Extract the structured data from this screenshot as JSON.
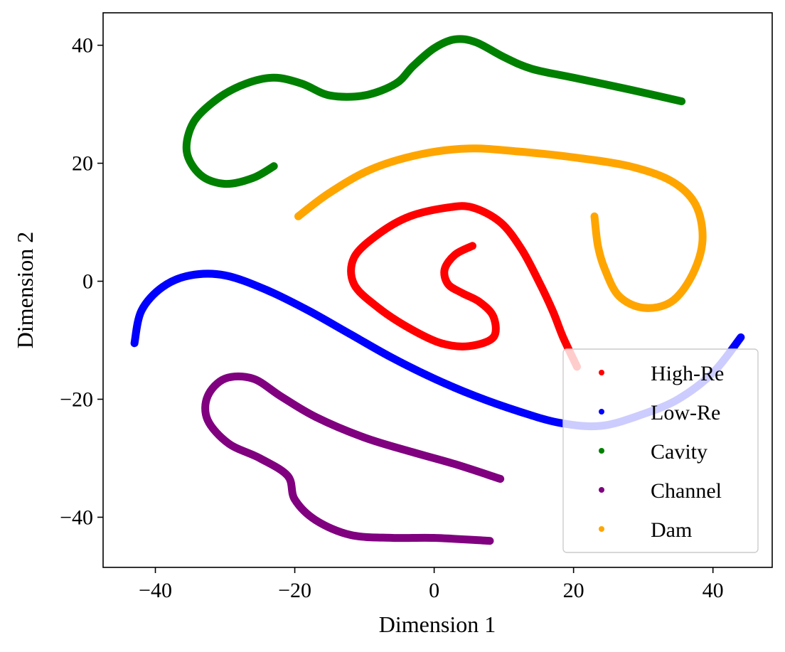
{
  "chart_data": {
    "type": "scatter",
    "title": "",
    "xlabel": "Dimension 1",
    "ylabel": "Dimension 2",
    "xlim": [
      -47.5,
      48.5
    ],
    "ylim": [
      -48.5,
      45.5
    ],
    "xticks": [
      -40,
      -20,
      0,
      20,
      40
    ],
    "yticks": [
      40,
      20,
      0,
      -20,
      -40
    ],
    "xtick_labels": [
      "−40",
      "−20",
      "0",
      "20",
      "40"
    ],
    "ytick_labels": [
      "40",
      "20",
      "0",
      "−20",
      "−40"
    ],
    "grid": false,
    "legend_position": "lower-right",
    "series": [
      {
        "name": "High-Re",
        "color": "#ff0000",
        "points": [
          [
            5.5,
            6
          ],
          [
            3,
            4.5
          ],
          [
            1.5,
            2
          ],
          [
            2,
            -0.5
          ],
          [
            4,
            -2
          ],
          [
            6.5,
            -3.5
          ],
          [
            8.5,
            -6
          ],
          [
            8.5,
            -9.5
          ],
          [
            5,
            -11
          ],
          [
            1,
            -10.5
          ],
          [
            -3.5,
            -8
          ],
          [
            -8,
            -4.5
          ],
          [
            -11.5,
            -0.5
          ],
          [
            -11.5,
            4
          ],
          [
            -8,
            8
          ],
          [
            -3.5,
            11
          ],
          [
            2,
            12.5
          ],
          [
            5.5,
            12.5
          ],
          [
            9.5,
            10
          ],
          [
            12.5,
            5.5
          ],
          [
            15,
            0
          ],
          [
            17,
            -5
          ],
          [
            18.5,
            -9.5
          ],
          [
            20.5,
            -14.5
          ]
        ]
      },
      {
        "name": "Low-Re",
        "color": "#0000ff",
        "points": [
          [
            -43,
            -10.5
          ],
          [
            -42,
            -5
          ],
          [
            -39,
            -1
          ],
          [
            -35,
            1
          ],
          [
            -30,
            1
          ],
          [
            -24,
            -1.5
          ],
          [
            -18,
            -5
          ],
          [
            -12,
            -9
          ],
          [
            -6,
            -13
          ],
          [
            0,
            -16.5
          ],
          [
            6,
            -19.5
          ],
          [
            12,
            -22
          ],
          [
            18,
            -24
          ],
          [
            24,
            -24.5
          ],
          [
            30,
            -22.5
          ],
          [
            35,
            -20
          ],
          [
            40,
            -15.5
          ],
          [
            44,
            -9.5
          ]
        ]
      },
      {
        "name": "Cavity",
        "color": "#008000",
        "points": [
          [
            -23,
            19.5
          ],
          [
            -26,
            17.5
          ],
          [
            -30,
            16.5
          ],
          [
            -33.5,
            18
          ],
          [
            -35.5,
            22
          ],
          [
            -34.5,
            27
          ],
          [
            -31,
            31
          ],
          [
            -27,
            33.5
          ],
          [
            -23,
            34.5
          ],
          [
            -19,
            33.5
          ],
          [
            -15,
            31.5
          ],
          [
            -10,
            31.5
          ],
          [
            -5.5,
            33.5
          ],
          [
            -3,
            36.5
          ],
          [
            0,
            39.5
          ],
          [
            3,
            41
          ],
          [
            6,
            40.5
          ],
          [
            10,
            38
          ],
          [
            14,
            36
          ],
          [
            20,
            34.5
          ],
          [
            28,
            32.5
          ],
          [
            35.5,
            30.5
          ]
        ]
      },
      {
        "name": "Channel",
        "color": "#800080",
        "points": [
          [
            9.5,
            -33.5
          ],
          [
            3,
            -31
          ],
          [
            -3,
            -29
          ],
          [
            -10,
            -26.5
          ],
          [
            -17,
            -23
          ],
          [
            -22,
            -19.5
          ],
          [
            -26,
            -16.5
          ],
          [
            -30,
            -16.5
          ],
          [
            -32.5,
            -19.5
          ],
          [
            -32.5,
            -23.5
          ],
          [
            -29.5,
            -27.5
          ],
          [
            -25,
            -30
          ],
          [
            -21,
            -33
          ],
          [
            -20,
            -37
          ],
          [
            -17,
            -40.5
          ],
          [
            -12,
            -43
          ],
          [
            -6,
            -43.5
          ],
          [
            0,
            -43.5
          ],
          [
            8,
            -44
          ]
        ]
      },
      {
        "name": "Dam",
        "color": "#ffa500",
        "points": [
          [
            -19.5,
            11
          ],
          [
            -15,
            15
          ],
          [
            -9,
            19
          ],
          [
            -2,
            21.5
          ],
          [
            5,
            22.5
          ],
          [
            12,
            22
          ],
          [
            20,
            21
          ],
          [
            28,
            19.5
          ],
          [
            34,
            17
          ],
          [
            37.5,
            13
          ],
          [
            38.5,
            7
          ],
          [
            37,
            1
          ],
          [
            34,
            -3.5
          ],
          [
            30,
            -4.5
          ],
          [
            26.5,
            -2.5
          ],
          [
            24.5,
            2
          ],
          [
            23.5,
            6
          ],
          [
            23,
            11
          ]
        ]
      }
    ]
  },
  "legend": {
    "items": [
      "High-Re",
      "Low-Re",
      "Cavity",
      "Channel",
      "Dam"
    ]
  }
}
